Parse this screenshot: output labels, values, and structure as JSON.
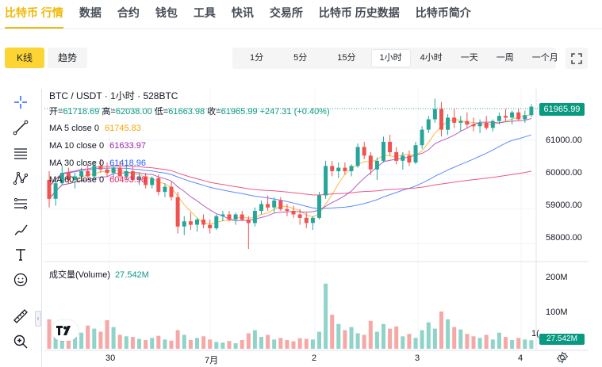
{
  "topnav": {
    "items": [
      {
        "label": "比特币 行情",
        "active": true
      },
      {
        "label": "数据"
      },
      {
        "label": "合约"
      },
      {
        "label": "钱包"
      },
      {
        "label": "工具"
      },
      {
        "label": "快讯"
      },
      {
        "label": "交易所"
      },
      {
        "label": "比特币 历史数据"
      },
      {
        "label": "比特币简介"
      }
    ]
  },
  "view_tabs": [
    {
      "label": "K线",
      "active": true
    },
    {
      "label": "趋势"
    }
  ],
  "intervals": [
    {
      "label": "1分"
    },
    {
      "label": "5分"
    },
    {
      "label": "15分"
    },
    {
      "label": "1小时",
      "active": true
    },
    {
      "label": "4小时"
    },
    {
      "label": "一天"
    },
    {
      "label": "一周"
    },
    {
      "label": "一个月"
    }
  ],
  "draw_tools": [
    "crosshair-icon",
    "trend-line-icon",
    "horizontal-lines-icon",
    "pattern-icon",
    "fib-icon",
    "brush-icon",
    "text-icon",
    "emoji-icon",
    "ruler-icon",
    "zoom-in-icon"
  ],
  "legend": {
    "title": "BTC / USDT · 1小时 · 528BTC",
    "ohlc": {
      "open_label": "开=",
      "open": "61718.69",
      "high_label": "高=",
      "high": "62038.00",
      "low_label": "低=",
      "low": "61663.98",
      "close_label": "收=",
      "close": "61965.99",
      "change": "+247.31 (+0.40%)"
    },
    "ma": [
      {
        "label": "MA 5 close 0",
        "value": "61745.83",
        "color": "#f7a600"
      },
      {
        "label": "MA 10 close 0",
        "value": "61633.97",
        "color": "#9c27b0"
      },
      {
        "label": "MA 30 close 0",
        "value": "61418.96",
        "color": "#2962ff"
      },
      {
        "label": "MA 60 close 0",
        "value": "60493.96",
        "color": "#e91e63"
      }
    ]
  },
  "price_axis": {
    "last_price": "61965.99",
    "ticks": [
      "61000.00",
      "60000.00",
      "59000.00",
      "58000.00"
    ]
  },
  "volume": {
    "legend_label": "成交量(Volume)",
    "legend_value": "27.542M",
    "ticks": [
      "200M",
      "100M"
    ],
    "last_tag": "27.542M",
    "partial_tick": "1("
  },
  "time_axis": {
    "labels": [
      "30",
      "7月",
      "2",
      "3",
      "4"
    ]
  },
  "colors": {
    "up": "#26a69a",
    "down": "#ef5350",
    "accent": "#f0b90b",
    "ma5": "#f7a600",
    "ma10": "#9c27b0",
    "ma30": "#2962ff",
    "ma60": "#e91e63"
  },
  "chart_data": {
    "type": "candlestick",
    "interval": "1小时",
    "ylim": [
      57600,
      62300
    ],
    "candles": [
      {
        "o": 59850,
        "h": 60100,
        "l": 59050,
        "c": 59300
      },
      {
        "o": 59300,
        "h": 59900,
        "l": 59100,
        "c": 59750
      },
      {
        "o": 59750,
        "h": 60250,
        "l": 59700,
        "c": 60050
      },
      {
        "o": 60050,
        "h": 60200,
        "l": 59750,
        "c": 59850
      },
      {
        "o": 59850,
        "h": 60050,
        "l": 59600,
        "c": 59950
      },
      {
        "o": 59950,
        "h": 60200,
        "l": 59800,
        "c": 60100
      },
      {
        "o": 60100,
        "h": 60300,
        "l": 59900,
        "c": 59950
      },
      {
        "o": 59950,
        "h": 60400,
        "l": 59850,
        "c": 60250
      },
      {
        "o": 60250,
        "h": 60450,
        "l": 60050,
        "c": 60150
      },
      {
        "o": 60150,
        "h": 60350,
        "l": 59950,
        "c": 60050
      },
      {
        "o": 60050,
        "h": 60300,
        "l": 59900,
        "c": 60200
      },
      {
        "o": 60200,
        "h": 60400,
        "l": 59900,
        "c": 59950
      },
      {
        "o": 59950,
        "h": 60250,
        "l": 59850,
        "c": 60100
      },
      {
        "o": 60100,
        "h": 60250,
        "l": 59800,
        "c": 59850
      },
      {
        "o": 59850,
        "h": 60050,
        "l": 59700,
        "c": 59950
      },
      {
        "o": 59950,
        "h": 60050,
        "l": 59600,
        "c": 59700
      },
      {
        "o": 59700,
        "h": 59950,
        "l": 59600,
        "c": 59900
      },
      {
        "o": 59900,
        "h": 60000,
        "l": 59400,
        "c": 59500
      },
      {
        "o": 59500,
        "h": 59750,
        "l": 59350,
        "c": 59650
      },
      {
        "o": 59650,
        "h": 59800,
        "l": 59250,
        "c": 59350
      },
      {
        "o": 59350,
        "h": 59500,
        "l": 58300,
        "c": 58500
      },
      {
        "o": 58500,
        "h": 58800,
        "l": 58250,
        "c": 58650
      },
      {
        "o": 58650,
        "h": 58900,
        "l": 58400,
        "c": 58550
      },
      {
        "o": 58550,
        "h": 58750,
        "l": 58350,
        "c": 58700
      },
      {
        "o": 58700,
        "h": 58850,
        "l": 58450,
        "c": 58550
      },
      {
        "o": 58550,
        "h": 58700,
        "l": 58300,
        "c": 58450
      },
      {
        "o": 58450,
        "h": 58850,
        "l": 58400,
        "c": 58800
      },
      {
        "o": 58800,
        "h": 58950,
        "l": 58650,
        "c": 58850
      },
      {
        "o": 58850,
        "h": 58950,
        "l": 58650,
        "c": 58700
      },
      {
        "o": 58700,
        "h": 58900,
        "l": 58550,
        "c": 58850
      },
      {
        "o": 58850,
        "h": 58950,
        "l": 58650,
        "c": 58700
      },
      {
        "o": 58700,
        "h": 58800,
        "l": 57850,
        "c": 58600
      },
      {
        "o": 58600,
        "h": 59050,
        "l": 58500,
        "c": 58950
      },
      {
        "o": 58950,
        "h": 59250,
        "l": 58850,
        "c": 59150
      },
      {
        "o": 59150,
        "h": 59400,
        "l": 58950,
        "c": 59050
      },
      {
        "o": 59050,
        "h": 59350,
        "l": 58900,
        "c": 59250
      },
      {
        "o": 59250,
        "h": 59350,
        "l": 58950,
        "c": 59000
      },
      {
        "o": 59000,
        "h": 59150,
        "l": 58800,
        "c": 58950
      },
      {
        "o": 58950,
        "h": 59100,
        "l": 58750,
        "c": 58850
      },
      {
        "o": 58850,
        "h": 59000,
        "l": 58550,
        "c": 58750
      },
      {
        "o": 58750,
        "h": 58900,
        "l": 58450,
        "c": 58600
      },
      {
        "o": 58600,
        "h": 58800,
        "l": 58400,
        "c": 58750
      },
      {
        "o": 58750,
        "h": 59500,
        "l": 58700,
        "c": 59400
      },
      {
        "o": 59400,
        "h": 60400,
        "l": 59300,
        "c": 60250
      },
      {
        "o": 60250,
        "h": 60400,
        "l": 59950,
        "c": 60100
      },
      {
        "o": 60100,
        "h": 60350,
        "l": 59900,
        "c": 60200
      },
      {
        "o": 60200,
        "h": 60350,
        "l": 60000,
        "c": 60100
      },
      {
        "o": 60100,
        "h": 60300,
        "l": 59950,
        "c": 60250
      },
      {
        "o": 60250,
        "h": 60900,
        "l": 60200,
        "c": 60800
      },
      {
        "o": 60800,
        "h": 60950,
        "l": 60450,
        "c": 60550
      },
      {
        "o": 60550,
        "h": 60650,
        "l": 60000,
        "c": 60150
      },
      {
        "o": 60150,
        "h": 60500,
        "l": 59850,
        "c": 60400
      },
      {
        "o": 60400,
        "h": 61100,
        "l": 60350,
        "c": 60950
      },
      {
        "o": 60950,
        "h": 61150,
        "l": 60550,
        "c": 60650
      },
      {
        "o": 60650,
        "h": 60800,
        "l": 60300,
        "c": 60400
      },
      {
        "o": 60400,
        "h": 60650,
        "l": 60150,
        "c": 60550
      },
      {
        "o": 60550,
        "h": 60700,
        "l": 60250,
        "c": 60350
      },
      {
        "o": 60350,
        "h": 60950,
        "l": 60300,
        "c": 60850
      },
      {
        "o": 60850,
        "h": 61400,
        "l": 60750,
        "c": 61300
      },
      {
        "o": 61300,
        "h": 61700,
        "l": 61200,
        "c": 61600
      },
      {
        "o": 61600,
        "h": 62200,
        "l": 61500,
        "c": 61900
      },
      {
        "o": 61900,
        "h": 62100,
        "l": 61100,
        "c": 61300
      },
      {
        "o": 61300,
        "h": 61750,
        "l": 61150,
        "c": 61650
      },
      {
        "o": 61650,
        "h": 61900,
        "l": 61350,
        "c": 61500
      },
      {
        "o": 61500,
        "h": 61700,
        "l": 61250,
        "c": 61550
      },
      {
        "o": 61550,
        "h": 61800,
        "l": 61350,
        "c": 61450
      },
      {
        "o": 61450,
        "h": 61650,
        "l": 61250,
        "c": 61400
      },
      {
        "o": 61400,
        "h": 61600,
        "l": 61200,
        "c": 61500
      },
      {
        "o": 61500,
        "h": 61700,
        "l": 61300,
        "c": 61350
      },
      {
        "o": 61350,
        "h": 61600,
        "l": 61250,
        "c": 61550
      },
      {
        "o": 61550,
        "h": 61800,
        "l": 61450,
        "c": 61700
      },
      {
        "o": 61700,
        "h": 61900,
        "l": 61550,
        "c": 61650
      },
      {
        "o": 61650,
        "h": 61850,
        "l": 61450,
        "c": 61800
      },
      {
        "o": 61800,
        "h": 61900,
        "l": 61550,
        "c": 61600
      },
      {
        "o": 61600,
        "h": 61850,
        "l": 61500,
        "c": 61720
      },
      {
        "o": 61720,
        "h": 62040,
        "l": 61660,
        "c": 61966
      }
    ],
    "volumes_M": [
      95,
      62,
      48,
      40,
      38,
      52,
      75,
      65,
      55,
      92,
      70,
      45,
      40,
      38,
      32,
      28,
      35,
      42,
      30,
      26,
      60,
      45,
      28,
      35,
      40,
      30,
      22,
      20,
      25,
      18,
      28,
      50,
      60,
      38,
      45,
      30,
      35,
      28,
      24,
      34,
      32,
      30,
      55,
      210,
      110,
      80,
      60,
      70,
      50,
      45,
      90,
      55,
      80,
      65,
      72,
      40,
      48,
      35,
      60,
      85,
      65,
      120,
      95,
      70,
      62,
      48,
      40,
      35,
      45,
      30,
      52,
      38,
      28,
      35,
      30,
      27.5
    ],
    "ma_series": [
      {
        "name": "MA 5 close 0"
      },
      {
        "name": "MA 10 close 0"
      },
      {
        "name": "MA 30 close 0"
      },
      {
        "name": "MA 60 close 0"
      }
    ]
  }
}
